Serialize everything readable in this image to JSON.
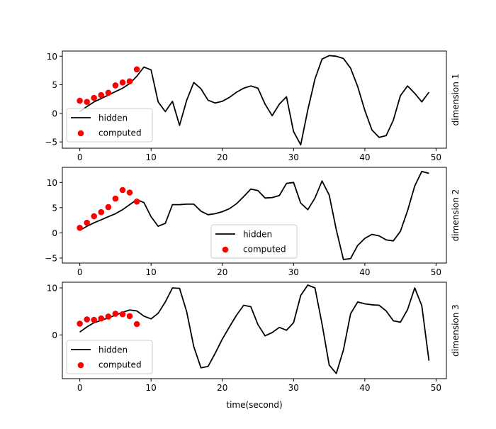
{
  "chart_data": [
    {
      "type": "line+scatter",
      "ylabel": "dimension 1",
      "xlabel": "",
      "xlim": [
        -2.45,
        51.45
      ],
      "ylim": [
        -6.1,
        10.9
      ],
      "xticks": [
        0,
        10,
        20,
        30,
        40,
        50
      ],
      "yticks": [
        -5,
        0,
        5,
        10
      ],
      "legend": {
        "placement": "lower-left",
        "entries": [
          "hidden",
          "computed"
        ]
      },
      "colors": {
        "hidden": "#000000",
        "computed": "#ff0000"
      },
      "series": [
        {
          "name": "hidden",
          "kind": "line",
          "x": [
            0,
            1,
            2,
            3,
            4,
            5,
            6,
            7,
            8,
            9,
            10,
            11,
            12,
            13,
            14,
            15,
            16,
            17,
            18,
            19,
            20,
            21,
            22,
            23,
            24,
            25,
            26,
            27,
            28,
            29,
            30,
            31,
            32,
            33,
            34,
            35,
            36,
            37,
            38,
            39,
            40,
            41,
            42,
            43,
            44,
            45,
            46,
            47,
            48,
            49
          ],
          "y": [
            0.3,
            1.2,
            2.0,
            2.6,
            3.2,
            3.8,
            4.4,
            5.2,
            6.5,
            8.1,
            7.6,
            2.0,
            0.3,
            2.1,
            -2.1,
            2.3,
            5.4,
            4.3,
            2.3,
            1.8,
            2.1,
            2.8,
            3.7,
            4.4,
            4.8,
            4.4,
            1.6,
            -0.4,
            1.6,
            2.9,
            -3.2,
            -5.5,
            0.6,
            6.0,
            9.5,
            10.1,
            10.0,
            9.6,
            7.9,
            4.7,
            0.5,
            -2.9,
            -4.2,
            -3.9,
            -1.2,
            3.1,
            4.8,
            3.5,
            2.0,
            3.7
          ]
        },
        {
          "name": "computed",
          "kind": "scatter",
          "x": [
            0,
            1,
            2,
            3,
            4,
            5,
            6,
            7,
            8
          ],
          "y": [
            2.2,
            2.0,
            2.7,
            3.2,
            3.6,
            4.9,
            5.4,
            5.6,
            7.7
          ]
        }
      ]
    },
    {
      "type": "line+scatter",
      "ylabel": "dimension 2",
      "xlabel": "",
      "xlim": [
        -2.45,
        51.45
      ],
      "ylim": [
        -6.0,
        13.0
      ],
      "xticks": [
        0,
        10,
        20,
        30,
        40,
        50
      ],
      "yticks": [
        -5,
        0,
        5,
        10
      ],
      "legend": {
        "placement": "lower-center",
        "entries": [
          "hidden",
          "computed"
        ]
      },
      "colors": {
        "hidden": "#000000",
        "computed": "#ff0000"
      },
      "series": [
        {
          "name": "hidden",
          "kind": "line",
          "x": [
            0,
            1,
            2,
            3,
            4,
            5,
            6,
            7,
            8,
            9,
            10,
            11,
            12,
            13,
            14,
            15,
            16,
            17,
            18,
            19,
            20,
            21,
            22,
            23,
            24,
            25,
            26,
            27,
            28,
            29,
            30,
            31,
            32,
            33,
            34,
            35,
            36,
            37,
            38,
            39,
            40,
            41,
            42,
            43,
            44,
            45,
            46,
            47,
            48,
            49
          ],
          "y": [
            0.5,
            1.3,
            2.0,
            2.6,
            3.2,
            3.8,
            4.6,
            5.6,
            6.6,
            6.0,
            3.2,
            1.3,
            1.9,
            5.6,
            5.6,
            5.7,
            5.7,
            4.3,
            3.6,
            3.8,
            4.2,
            4.8,
            5.8,
            7.2,
            8.7,
            8.4,
            6.9,
            7.0,
            7.4,
            9.8,
            10.0,
            5.9,
            4.6,
            6.9,
            10.3,
            7.5,
            0.6,
            -5.3,
            -5.1,
            -2.5,
            -1.1,
            -0.3,
            -0.6,
            -1.4,
            -1.6,
            0.3,
            4.4,
            9.3,
            12.2,
            11.8
          ]
        },
        {
          "name": "computed",
          "kind": "scatter",
          "x": [
            0,
            1,
            2,
            3,
            4,
            5,
            6,
            7,
            8
          ],
          "y": [
            1.0,
            2.0,
            3.3,
            4.1,
            5.1,
            6.8,
            8.5,
            8.0,
            6.2
          ]
        }
      ]
    },
    {
      "type": "line+scatter",
      "ylabel": "dimension 3",
      "xlabel": "time(second)",
      "xlim": [
        -2.45,
        51.45
      ],
      "ylim": [
        -9.3,
        11.2
      ],
      "xticks": [
        0,
        10,
        20,
        30,
        40,
        50
      ],
      "yticks": [
        0,
        10
      ],
      "legend": {
        "placement": "lower-left",
        "entries": [
          "hidden",
          "computed"
        ]
      },
      "colors": {
        "hidden": "#000000",
        "computed": "#ff0000"
      },
      "series": [
        {
          "name": "hidden",
          "kind": "line",
          "x": [
            0,
            1,
            2,
            3,
            4,
            5,
            6,
            7,
            8,
            9,
            10,
            11,
            12,
            13,
            14,
            15,
            16,
            17,
            18,
            19,
            20,
            21,
            22,
            23,
            24,
            25,
            26,
            27,
            28,
            29,
            30,
            31,
            32,
            33,
            34,
            35,
            36,
            37,
            38,
            39,
            40,
            41,
            42,
            43,
            44,
            45,
            46,
            47,
            48,
            49
          ],
          "y": [
            0.6,
            1.7,
            2.6,
            3.1,
            3.6,
            4.2,
            4.8,
            5.3,
            5.1,
            4.0,
            3.4,
            4.6,
            7.0,
            10.0,
            9.9,
            4.9,
            -2.5,
            -7.0,
            -6.7,
            -3.9,
            -0.9,
            1.7,
            4.2,
            6.3,
            6.0,
            2.2,
            -0.2,
            0.5,
            1.6,
            1.0,
            2.6,
            8.4,
            10.6,
            10.0,
            2.3,
            -6.4,
            -8.2,
            -3.2,
            4.5,
            7.0,
            6.6,
            6.4,
            6.3,
            5.1,
            3.0,
            2.7,
            5.4,
            10.0,
            6.2,
            -5.5
          ]
        },
        {
          "name": "computed",
          "kind": "scatter",
          "x": [
            0,
            1,
            2,
            3,
            4,
            5,
            6,
            7,
            8
          ],
          "y": [
            2.4,
            3.3,
            3.2,
            3.5,
            3.9,
            4.5,
            4.4,
            4.0,
            2.3
          ]
        }
      ]
    }
  ]
}
